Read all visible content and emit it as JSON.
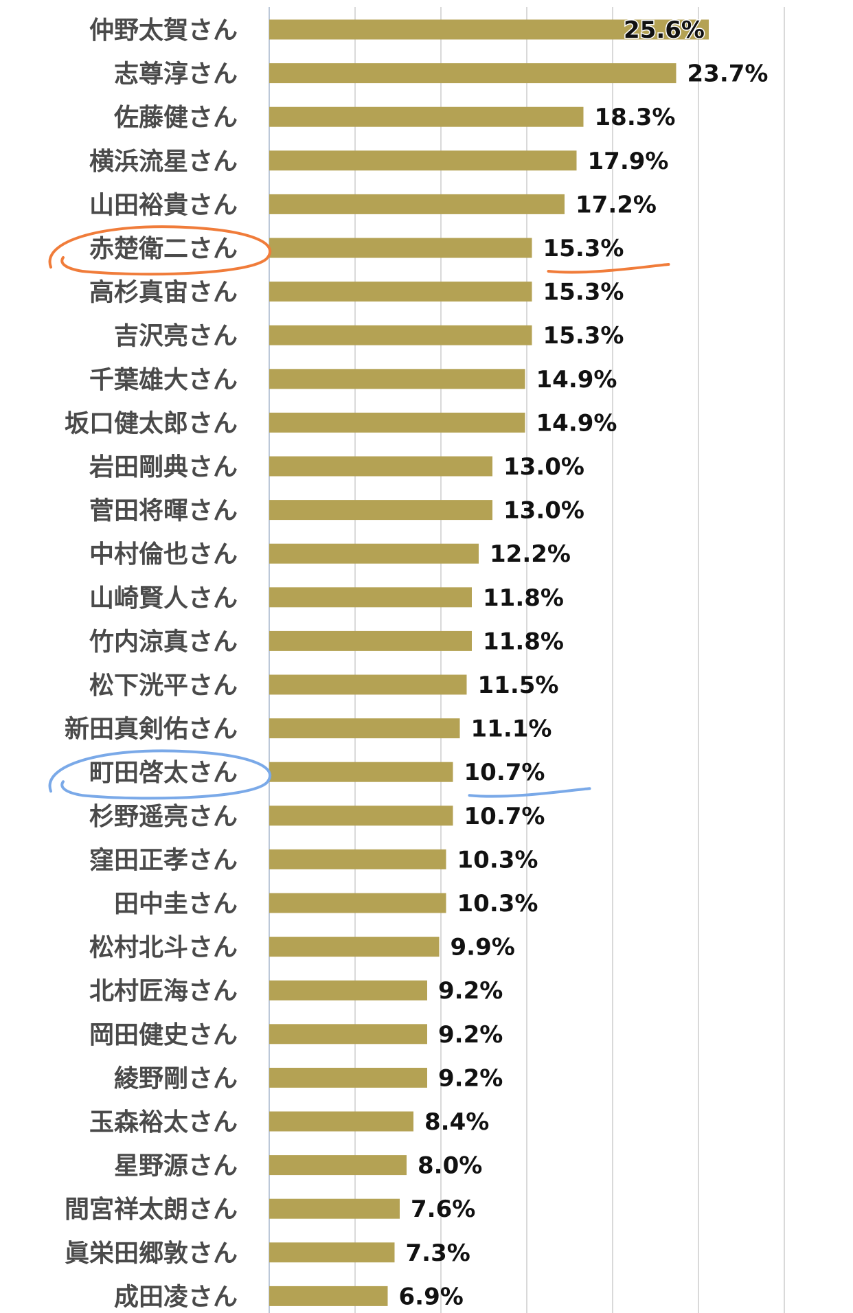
{
  "chart_data": {
    "type": "bar",
    "orientation": "horizontal",
    "title": "",
    "xlabel": "",
    "ylabel": "",
    "xlim": [
      0,
      30
    ],
    "grid": true,
    "legend": "none",
    "bar_color": "#b4a254",
    "value_suffix": "%",
    "categories": [
      "仲野太賀さん",
      "志尊淳さん",
      "佐藤健さん",
      "横浜流星さん",
      "山田裕貴さん",
      "赤楚衛二さん",
      "高杉真宙さん",
      "吉沢亮さん",
      "千葉雄大さん",
      "坂口健太郎さん",
      "岩田剛典さん",
      "菅田将暉さん",
      "中村倫也さん",
      "山崎賢人さん",
      "竹内涼真さん",
      "松下洸平さん",
      "新田真剣佑さん",
      "町田啓太さん",
      "杉野遥亮さん",
      "窪田正孝さん",
      "田中圭さん",
      "松村北斗さん",
      "北村匠海さん",
      "岡田健史さん",
      "綾野剛さん",
      "玉森裕太さん",
      "星野源さん",
      "間宮祥太朗さん",
      "眞栄田郷敦さん",
      "成田凌さん"
    ],
    "values": [
      25.6,
      23.7,
      18.3,
      17.9,
      17.2,
      15.3,
      15.3,
      15.3,
      14.9,
      14.9,
      13.0,
      13.0,
      12.2,
      11.8,
      11.8,
      11.5,
      11.1,
      10.7,
      10.7,
      10.3,
      10.3,
      9.9,
      9.2,
      9.2,
      9.2,
      8.4,
      8.0,
      7.6,
      7.3,
      6.9
    ],
    "value_labels": [
      "25.6%",
      "23.7%",
      "18.3%",
      "17.9%",
      "17.2%",
      "15.3%",
      "15.3%",
      "15.3%",
      "14.9%",
      "14.9%",
      "13.0%",
      "13.0%",
      "12.2%",
      "11.8%",
      "11.8%",
      "11.5%",
      "11.1%",
      "10.7%",
      "10.7%",
      "10.3%",
      "10.3%",
      "9.9%",
      "9.2%",
      "9.2%",
      "9.2%",
      "8.4%",
      "8.0%",
      "7.6%",
      "7.3%",
      "6.9%"
    ],
    "annotations": [
      {
        "category": "赤楚衛二さん",
        "type": "hand-drawn circle and underline",
        "color": "#f07c3a"
      },
      {
        "category": "町田啓太さん",
        "type": "hand-drawn circle and underline",
        "color": "#7aa9e8"
      }
    ]
  }
}
